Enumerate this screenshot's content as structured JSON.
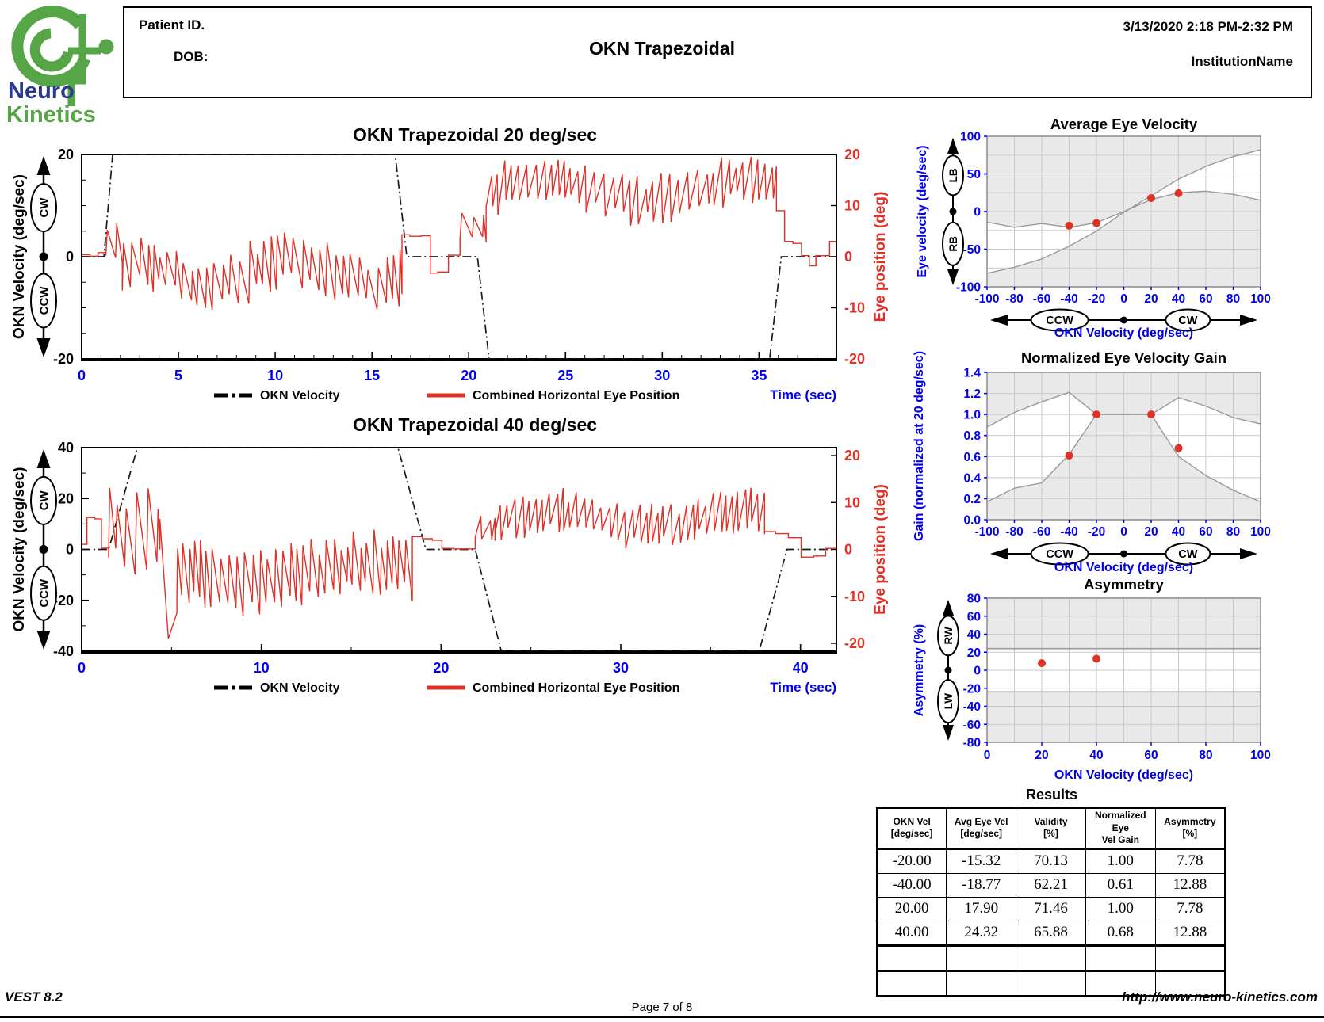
{
  "header": {
    "patient_id_label": "Patient ID.",
    "dob_label": "DOB:",
    "title": "OKN Trapezoidal",
    "datetime": "3/13/2020 2:18 PM-2:32 PM",
    "institution": "InstitutionName"
  },
  "logo": {
    "line1": "Neuro",
    "line2": "Kinetics",
    "green": "#56a546",
    "blue": "#2a3b8f"
  },
  "colors": {
    "red": "#e03127",
    "blue": "#0000f0",
    "black": "#1a1a1a",
    "band_gray": "#e9e9e9",
    "grid_gray": "#c9c9c9",
    "curve_gray": "#9a9a9a",
    "frame_gray": "#8a8a8a"
  },
  "legend": {
    "okn": "OKN Velocity",
    "eye": "Combined Horizontal Eye Position",
    "time": "Time (sec)"
  },
  "seed": 42,
  "chart_data": [
    {
      "id": "okn20",
      "type": "line",
      "title": "OKN Trapezoidal 20 deg/sec",
      "ylabel": "OKN Velocity (deg/sec)",
      "y2label": "Eye position (deg)",
      "xlabel": "Time (sec)",
      "xlim": [
        0,
        39
      ],
      "ylim": [
        -20,
        20
      ],
      "xticks": [
        "0",
        "5",
        "10",
        "15",
        "20",
        "25",
        "30",
        "35"
      ],
      "xminor": 1,
      "yticks": [
        "20",
        "0",
        "-20"
      ],
      "yminor": 5,
      "y2ticks": [
        "20",
        "10",
        "0",
        "-10",
        "-20"
      ],
      "axis_badges_y": [
        "CW",
        "CCW"
      ],
      "okn_velocity_trapezoid": [
        [
          0,
          0
        ],
        [
          1.15,
          0
        ],
        [
          1.6,
          20
        ],
        [
          16.2,
          20
        ],
        [
          16.8,
          0
        ],
        [
          20.45,
          0
        ],
        [
          21.05,
          -20
        ],
        [
          35.55,
          -20
        ],
        [
          36.15,
          0
        ],
        [
          39,
          0
        ]
      ],
      "eye_position_synthesis": [
        {
          "kind": "steps",
          "t0": 0,
          "t1": 1.25,
          "levels": [
            0.4,
            0.1,
            0.8
          ]
        },
        {
          "kind": "nystagmus",
          "t0": 1.25,
          "t1": 2.1,
          "mean": 3,
          "amp": 7,
          "period": 0.45,
          "fast": "up"
        },
        {
          "kind": "nystagmus",
          "t0": 2.1,
          "t1": 16.55,
          "mean": -3,
          "amp": 9,
          "period": 0.42,
          "fast": "up",
          "wander": 2.5,
          "wfreq": 0.75
        },
        {
          "kind": "steps",
          "t0": 16.55,
          "t1": 19.55,
          "levels": [
            4.3,
            4.0,
            4.1,
            -3.2,
            -3.0,
            0.3
          ]
        },
        {
          "kind": "nystagmus",
          "t0": 19.55,
          "t1": 20.9,
          "mean": 5.5,
          "amp": 5,
          "period": 0.5,
          "fast": "up"
        },
        {
          "kind": "nystagmus",
          "t0": 20.9,
          "t1": 35.9,
          "mean": 13,
          "amp": 8,
          "period": 0.4,
          "fast": "down",
          "wander": 2,
          "wfreq": 0.6
        },
        {
          "kind": "steps",
          "t0": 35.9,
          "t1": 38.4,
          "levels": [
            9,
            3,
            2.6,
            0.2,
            -1.8,
            0.2
          ]
        },
        {
          "kind": "steps",
          "t0": 38.4,
          "t1": 39,
          "levels": [
            0.2,
            3
          ]
        }
      ]
    },
    {
      "id": "okn40",
      "type": "line",
      "title": "OKN Trapezoidal 40 deg/sec",
      "ylabel": "OKN Velocity (deg/sec)",
      "y2label": "Eye position (deg)",
      "xlabel": "Time (sec)",
      "xlim": [
        0,
        42
      ],
      "ylim": [
        -40,
        40
      ],
      "xticks": [
        "0",
        "10",
        "20",
        "30",
        "40"
      ],
      "xminor": 5,
      "yticks": [
        "40",
        "20",
        "0",
        "-20",
        "-40"
      ],
      "yminor": 10,
      "y2ticks": [
        "20",
        "10",
        "0",
        "-10",
        "-20"
      ],
      "axis_badges_y": [
        "CW",
        "CCW"
      ],
      "okn_velocity_trapezoid": [
        [
          0,
          0
        ],
        [
          1.5,
          0
        ],
        [
          3.1,
          40
        ],
        [
          17.6,
          40
        ],
        [
          19.15,
          0
        ],
        [
          21.9,
          0
        ],
        [
          23.35,
          -40
        ],
        [
          37.7,
          -40
        ],
        [
          39.25,
          0
        ],
        [
          42,
          0
        ]
      ],
      "eye_position_synthesis": [
        {
          "kind": "steps",
          "t0": 0,
          "t1": 1.5,
          "levels": [
            2,
            12.5,
            12,
            0.5
          ]
        },
        {
          "kind": "nystagmus",
          "t0": 1.5,
          "t1": 4.35,
          "mean": 8,
          "amp": 28,
          "period": 0.55,
          "fast": "up"
        },
        {
          "kind": "vee",
          "t0": 4.35,
          "t1": 5.3,
          "from": 12,
          "low": -35,
          "to": -25
        },
        {
          "kind": "nystagmus",
          "t0": 5.3,
          "t1": 18.4,
          "mean": -9,
          "amp": 21,
          "period": 0.38,
          "fast": "up",
          "wander": 4,
          "wfreq": 0.5
        },
        {
          "kind": "steps",
          "t0": 18.4,
          "t1": 21.9,
          "levels": [
            5,
            4.2,
            3.6,
            0.4,
            0.2
          ]
        },
        {
          "kind": "nystagmus",
          "t0": 21.9,
          "t1": 23.0,
          "mean": 8,
          "amp": 8,
          "period": 0.45,
          "fast": "down"
        },
        {
          "kind": "nystagmus",
          "t0": 23.0,
          "t1": 38.0,
          "mean": 12,
          "amp": 15,
          "period": 0.38,
          "fast": "down",
          "wander": 3,
          "wfreq": 0.55
        },
        {
          "kind": "steps",
          "t0": 38.0,
          "t1": 42,
          "levels": [
            7,
            6.2,
            4.6,
            -3,
            -2.6,
            0.4,
            4.4
          ]
        }
      ]
    },
    {
      "id": "avg_eye_velocity",
      "type": "scatter",
      "title": "Average Eye Velocity",
      "xlabel": "OKN Velocity (deg/sec)",
      "ylabel": "Eye velocity (deg/sec)",
      "xlim": [
        -100,
        100
      ],
      "ylim": [
        -100,
        100
      ],
      "xticks": [
        "-100",
        "-80",
        "-60",
        "-40",
        "-20",
        "0",
        "20",
        "40",
        "60",
        "80",
        "100"
      ],
      "yticks": [
        "100",
        "50",
        "0",
        "-50",
        "-100"
      ],
      "grid": {
        "gx": 20,
        "gy": 25
      },
      "band": {
        "type": "between",
        "upper": [
          [
            -100,
            -14
          ],
          [
            -80,
            -21
          ],
          [
            -60,
            -16
          ],
          [
            -40,
            -21
          ],
          [
            -20,
            -15
          ],
          [
            0,
            0
          ],
          [
            20,
            16
          ],
          [
            40,
            25
          ],
          [
            60,
            27
          ],
          [
            80,
            23
          ],
          [
            100,
            15
          ]
        ],
        "lower": [
          [
            -100,
            -82
          ],
          [
            -80,
            -74
          ],
          [
            -60,
            -63
          ],
          [
            -40,
            -46
          ],
          [
            -20,
            -26
          ],
          [
            0,
            -1
          ],
          [
            20,
            21
          ],
          [
            40,
            43
          ],
          [
            60,
            60
          ],
          [
            80,
            73
          ],
          [
            100,
            82
          ]
        ]
      },
      "points": [
        [
          -40,
          -18.77
        ],
        [
          -20,
          -15.32
        ],
        [
          20,
          17.9
        ],
        [
          40,
          24.32
        ]
      ],
      "axis_badges_y": [
        "LB",
        "RB"
      ],
      "axis_badges_x": [
        "CCW",
        "CW"
      ]
    },
    {
      "id": "normalized_gain",
      "type": "scatter",
      "title": "Normalized Eye Velocity Gain",
      "xlabel": "OKN Velocity (deg/sec)",
      "ylabel": "Gain (normalized at 20 deg/sec)",
      "xlim": [
        -100,
        100
      ],
      "ylim": [
        0,
        1.4
      ],
      "xticks": [
        "-100",
        "-80",
        "-60",
        "-40",
        "-20",
        "0",
        "20",
        "40",
        "60",
        "80",
        "100"
      ],
      "yticks": [
        "1.4",
        "1.2",
        "1.0",
        "0.8",
        "0.6",
        "0.4",
        "0.2",
        "0.0"
      ],
      "grid": {
        "gx": 20,
        "gy": 0.2
      },
      "band": {
        "type": "lobes",
        "left_upper": [
          [
            -100,
            0.88
          ],
          [
            -80,
            1.02
          ],
          [
            -60,
            1.12
          ],
          [
            -40,
            1.21
          ],
          [
            -20,
            1.0
          ]
        ],
        "left_lower": [
          [
            -100,
            0.17
          ],
          [
            -80,
            0.3
          ],
          [
            -60,
            0.35
          ],
          [
            -40,
            0.62
          ],
          [
            -20,
            1.0
          ]
        ],
        "right_upper": [
          [
            20,
            1.0
          ],
          [
            40,
            1.16
          ],
          [
            60,
            1.08
          ],
          [
            80,
            0.97
          ],
          [
            100,
            0.91
          ]
        ],
        "right_lower": [
          [
            20,
            1.0
          ],
          [
            40,
            0.6
          ],
          [
            60,
            0.42
          ],
          [
            80,
            0.28
          ],
          [
            100,
            0.17
          ]
        ],
        "bridge": [
          [
            -20,
            1.0
          ],
          [
            20,
            1.0
          ]
        ]
      },
      "points": [
        [
          -40,
          0.61
        ],
        [
          -20,
          1.0
        ],
        [
          20,
          1.0
        ],
        [
          40,
          0.68
        ]
      ],
      "axis_badges_x": [
        "CCW",
        "CW"
      ]
    },
    {
      "id": "asymmetry",
      "type": "scatter",
      "title": "Asymmetry",
      "xlabel": "OKN Velocity (deg/sec)",
      "ylabel": "Asymmetry (%)",
      "xlim": [
        0,
        100
      ],
      "ylim": [
        -80,
        80
      ],
      "xticks": [
        "0",
        "20",
        "40",
        "60",
        "80",
        "100"
      ],
      "yticks": [
        "80",
        "60",
        "40",
        "20",
        "0",
        "-20",
        "-40",
        "-60",
        "-80"
      ],
      "grid": {
        "gx": 10,
        "gy": 20
      },
      "band": {
        "type": "hband",
        "lo": -24,
        "hi": 24
      },
      "points": [
        [
          20,
          7.78
        ],
        [
          40,
          12.88
        ]
      ],
      "axis_badges_y": [
        "RW",
        "LW"
      ]
    }
  ],
  "results": {
    "title": "Results",
    "columns": [
      [
        "OKN Vel",
        "[deg/sec]"
      ],
      [
        "Avg Eye Vel",
        "[deg/sec]"
      ],
      [
        "Validity",
        "[%]"
      ],
      [
        "Normalized Eye",
        "Vel Gain"
      ],
      [
        "Asymmetry",
        "[%]"
      ]
    ],
    "rows": [
      [
        "-20.00",
        "-15.32",
        "70.13",
        "1.00",
        "7.78"
      ],
      [
        "-40.00",
        "-18.77",
        "62.21",
        "0.61",
        "12.88"
      ],
      [
        "20.00",
        "17.90",
        "71.46",
        "1.00",
        "7.78"
      ],
      [
        "40.00",
        "24.32",
        "65.88",
        "0.68",
        "12.88"
      ]
    ],
    "empty_rows": 2
  },
  "footer": {
    "left": "VEST 8.2",
    "center": "Page 7 of 8",
    "right": "http://www.neuro-kinetics.com"
  }
}
